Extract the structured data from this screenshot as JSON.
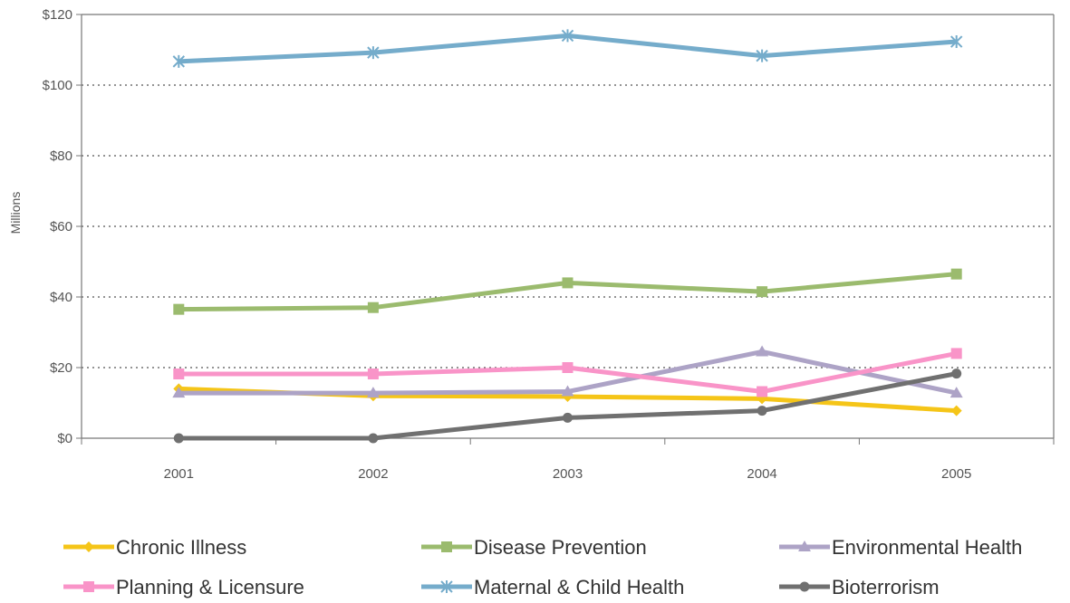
{
  "chart_data": {
    "type": "line",
    "title": "",
    "xlabel": "",
    "ylabel": "Millions",
    "categories": [
      "2001",
      "2002",
      "2003",
      "2004",
      "2005"
    ],
    "ylim": [
      0,
      120
    ],
    "yticks": [
      0,
      20,
      40,
      60,
      80,
      100,
      120
    ],
    "ytick_labels": [
      "$0",
      "$20",
      "$40",
      "$60",
      "$80",
      "$100",
      "$120"
    ],
    "grid": "horizontal dotted",
    "legend_position": "bottom",
    "series": [
      {
        "name": "Chronic Illness",
        "color": "#F5C518",
        "marker": "diamond",
        "values": [
          14,
          12,
          11.8,
          11.2,
          7.8
        ]
      },
      {
        "name": "Disease Prevention",
        "color": "#9BBB6E",
        "marker": "square",
        "values": [
          36.5,
          37,
          44,
          41.5,
          46.5
        ]
      },
      {
        "name": "Environmental Health",
        "color": "#ADA3C6",
        "marker": "triangle",
        "values": [
          12.8,
          12.8,
          13.2,
          24.5,
          12.8
        ]
      },
      {
        "name": "Planning & Licensure",
        "color": "#F994C8",
        "marker": "square",
        "values": [
          18.2,
          18.2,
          20,
          13.2,
          24
        ]
      },
      {
        "name": "Maternal & Child Health",
        "color": "#75ACCB",
        "marker": "asterisk",
        "values": [
          106.7,
          109.2,
          114,
          108.3,
          112.3
        ]
      },
      {
        "name": "Bioterrorism",
        "color": "#707070",
        "marker": "circle",
        "values": [
          0,
          0,
          5.8,
          7.8,
          18.3
        ]
      }
    ]
  }
}
